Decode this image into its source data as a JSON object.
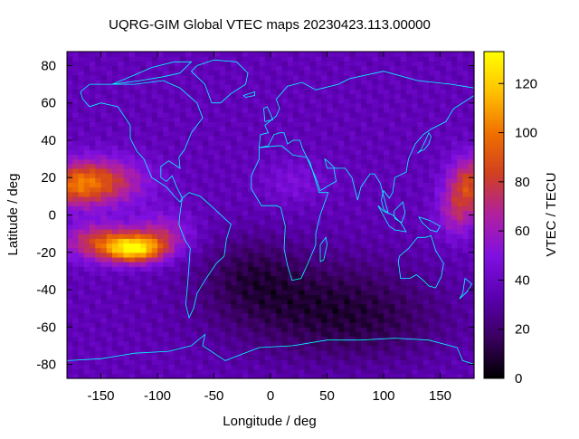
{
  "chart_data": {
    "type": "heatmap",
    "title": "UQRG-GIM Global VTEC maps 20230423.113.00000",
    "xlabel": "Longitude / deg",
    "ylabel": "Latitude / deg",
    "colorbar_label": "VTEC / TECU",
    "xlim": [
      -180,
      180
    ],
    "ylim": [
      -87.5,
      87.5
    ],
    "x_ticks": [
      -150,
      -100,
      -50,
      0,
      50,
      100,
      150
    ],
    "y_ticks": [
      80,
      60,
      40,
      20,
      0,
      -20,
      -40,
      -60,
      -80
    ],
    "colorbar_range": [
      0,
      133
    ],
    "colorbar_ticks": [
      0,
      20,
      40,
      60,
      80,
      100,
      120
    ],
    "colormap": [
      "#000000",
      "#3a0060",
      "#5a00b0",
      "#8010e0",
      "#b020a0",
      "#d04020",
      "#f07000",
      "#ffc000",
      "#ffff00"
    ],
    "grid_lon_step": 5,
    "grid_lat_step": 2.5,
    "features": [
      {
        "name": "equatorial-anomaly-pacific-north",
        "lon": -145,
        "lat": 17,
        "vtec": 80
      },
      {
        "name": "equatorial-anomaly-pacific-south",
        "lon": -120,
        "lat": -18,
        "vtec": 120
      },
      {
        "name": "equatorial-anomaly-west-pacific",
        "lon": 178,
        "lat": 18,
        "vtec": 82
      },
      {
        "name": "southern-ocean-minimum",
        "lon": 40,
        "lat": -50,
        "vtec": 10
      },
      {
        "name": "background-high-latitude",
        "vtec": 35
      }
    ],
    "coastline_color": "#00ffff"
  }
}
